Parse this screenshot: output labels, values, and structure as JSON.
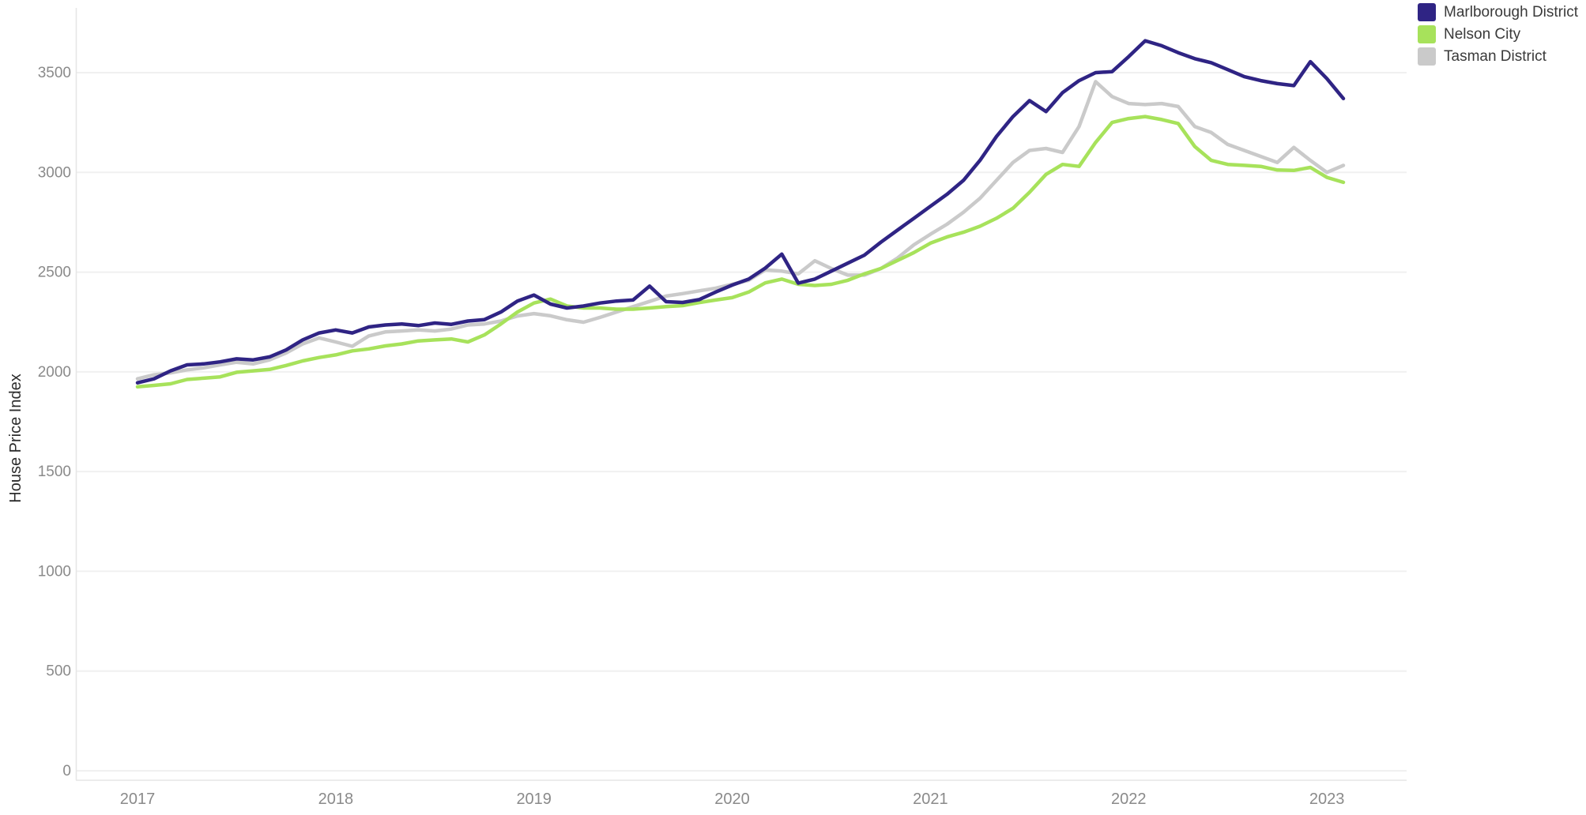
{
  "chart_data": {
    "type": "line",
    "title": "",
    "xlabel": "",
    "ylabel": "House Price Index",
    "frequency": "monthly",
    "x_start": "2017-01",
    "x_end": "2023-02",
    "x_tick_labels": [
      "2017",
      "2018",
      "2019",
      "2020",
      "2021",
      "2022",
      "2023"
    ],
    "y_ticks": [
      0,
      500,
      1000,
      1500,
      2000,
      2500,
      3000,
      3500
    ],
    "ylim": [
      0,
      3870
    ],
    "grid": "horizontal",
    "legend_position": "top-right",
    "colors": {
      "grid_line": "#f0f0f0",
      "axis_line": "#e6e6e6",
      "tick_label": "#8a8a8a",
      "axis_title": "#2b2b2b",
      "background": "#ffffff"
    },
    "series": [
      {
        "name": "Marlborough District",
        "color": "#2f2484",
        "values": [
          1945,
          1965,
          2005,
          2035,
          2040,
          2050,
          2065,
          2060,
          2075,
          2110,
          2160,
          2195,
          2210,
          2195,
          2225,
          2235,
          2240,
          2232,
          2245,
          2238,
          2255,
          2262,
          2300,
          2355,
          2385,
          2340,
          2320,
          2330,
          2345,
          2355,
          2360,
          2430,
          2352,
          2348,
          2362,
          2400,
          2435,
          2465,
          2520,
          2590,
          2445,
          2465,
          2505,
          2545,
          2585,
          2650,
          2710,
          2770,
          2830,
          2890,
          2960,
          3060,
          3180,
          3280,
          3360,
          3305,
          3400,
          3460,
          3500,
          3505,
          3580,
          3660,
          3635,
          3600,
          3570,
          3550,
          3515,
          3480,
          3460,
          3445,
          3435,
          3555,
          3470,
          3370
        ]
      },
      {
        "name": "Nelson City",
        "color": "#a7e25b",
        "values": [
          1925,
          1932,
          1940,
          1962,
          1968,
          1975,
          1998,
          2005,
          2012,
          2032,
          2055,
          2072,
          2085,
          2105,
          2115,
          2130,
          2140,
          2155,
          2160,
          2165,
          2150,
          2185,
          2240,
          2300,
          2345,
          2365,
          2330,
          2320,
          2320,
          2314,
          2314,
          2320,
          2327,
          2332,
          2347,
          2360,
          2372,
          2400,
          2446,
          2465,
          2439,
          2433,
          2439,
          2459,
          2491,
          2518,
          2558,
          2598,
          2645,
          2676,
          2700,
          2730,
          2770,
          2820,
          2900,
          2990,
          3040,
          3030,
          3150,
          3250,
          3270,
          3280,
          3265,
          3245,
          3130,
          3060,
          3040,
          3035,
          3030,
          3012,
          3010,
          3025,
          2975,
          2950
        ]
      },
      {
        "name": "Tasman District",
        "color": "#cacaca",
        "values": [
          1965,
          1985,
          1995,
          2010,
          2020,
          2035,
          2048,
          2040,
          2060,
          2095,
          2140,
          2170,
          2150,
          2128,
          2180,
          2200,
          2205,
          2210,
          2205,
          2215,
          2235,
          2240,
          2255,
          2280,
          2292,
          2281,
          2261,
          2249,
          2273,
          2300,
          2327,
          2353,
          2380,
          2392,
          2406,
          2419,
          2439,
          2459,
          2511,
          2505,
          2491,
          2557,
          2518,
          2485,
          2485,
          2518,
          2570,
          2637,
          2690,
          2740,
          2800,
          2870,
          2960,
          3050,
          3110,
          3120,
          3100,
          3230,
          3455,
          3380,
          3345,
          3340,
          3345,
          3330,
          3230,
          3200,
          3140,
          3110,
          3080,
          3050,
          3125,
          3060,
          3000,
          3035
        ]
      }
    ]
  },
  "legend": {
    "items": [
      {
        "label": "Marlborough District"
      },
      {
        "label": "Nelson City"
      },
      {
        "label": "Tasman District"
      }
    ]
  }
}
